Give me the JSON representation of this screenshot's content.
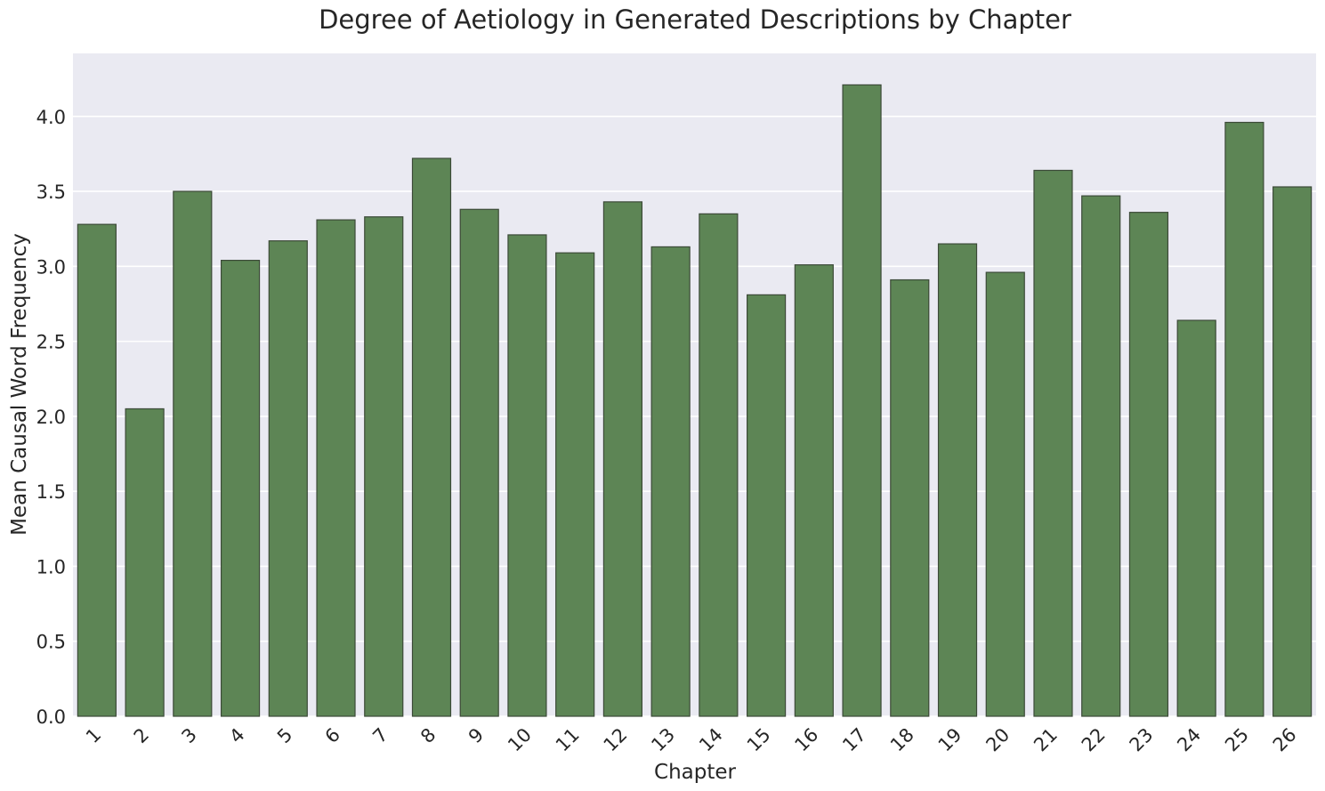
{
  "chart_data": {
    "type": "bar",
    "title": "Degree of Aetiology in Generated Descriptions by Chapter",
    "xlabel": "Chapter",
    "ylabel": "Mean Causal Word Frequency",
    "categories": [
      "1",
      "2",
      "3",
      "4",
      "5",
      "6",
      "7",
      "8",
      "9",
      "10",
      "11",
      "12",
      "13",
      "14",
      "15",
      "16",
      "17",
      "18",
      "19",
      "20",
      "21",
      "22",
      "23",
      "24",
      "25",
      "26"
    ],
    "values": [
      3.28,
      2.05,
      3.5,
      3.04,
      3.17,
      3.31,
      3.33,
      3.72,
      3.38,
      3.21,
      3.09,
      3.43,
      3.13,
      3.35,
      2.81,
      3.01,
      4.21,
      2.91,
      3.15,
      2.96,
      3.64,
      3.47,
      3.36,
      2.64,
      3.96,
      3.53
    ],
    "yticks": [
      "0.0",
      "0.5",
      "1.0",
      "1.5",
      "2.0",
      "2.5",
      "3.0",
      "3.5",
      "4.0"
    ],
    "ylim": [
      0,
      4.42
    ],
    "grid": true,
    "colors": {
      "bar": "#5d8555",
      "bar_edge": "#3c4a38",
      "plot_background": "#eaeaf2",
      "grid": "#ffffff"
    }
  }
}
